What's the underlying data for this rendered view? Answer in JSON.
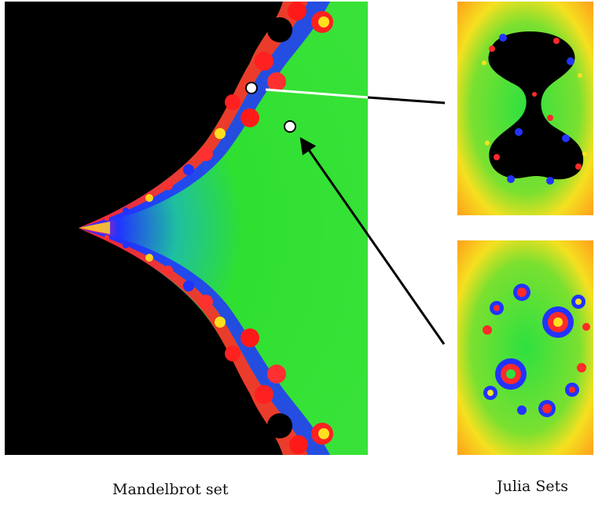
{
  "figure": {
    "mandelbrot_caption": "Mandelbrot set",
    "julia_caption": "Julia Sets"
  },
  "colors": {
    "set_interior": "#000000",
    "escape_green": "#2fe030",
    "escape_blue": "#2233ff",
    "escape_red": "#ff1a1a",
    "julia_outer": "#ff9a1a",
    "julia_yellow": "#f5e020",
    "marker_fill": "#ffffff",
    "arrow_white": "#ffffff",
    "arrow_black": "#000000"
  },
  "markers": [
    {
      "name": "point-on-boundary",
      "links_to": "julia-top"
    },
    {
      "name": "point-outside-set",
      "links_to": "julia-bottom"
    }
  ],
  "julia_panels": [
    {
      "name": "julia-top",
      "style": "connected"
    },
    {
      "name": "julia-bottom",
      "style": "dust"
    }
  ]
}
